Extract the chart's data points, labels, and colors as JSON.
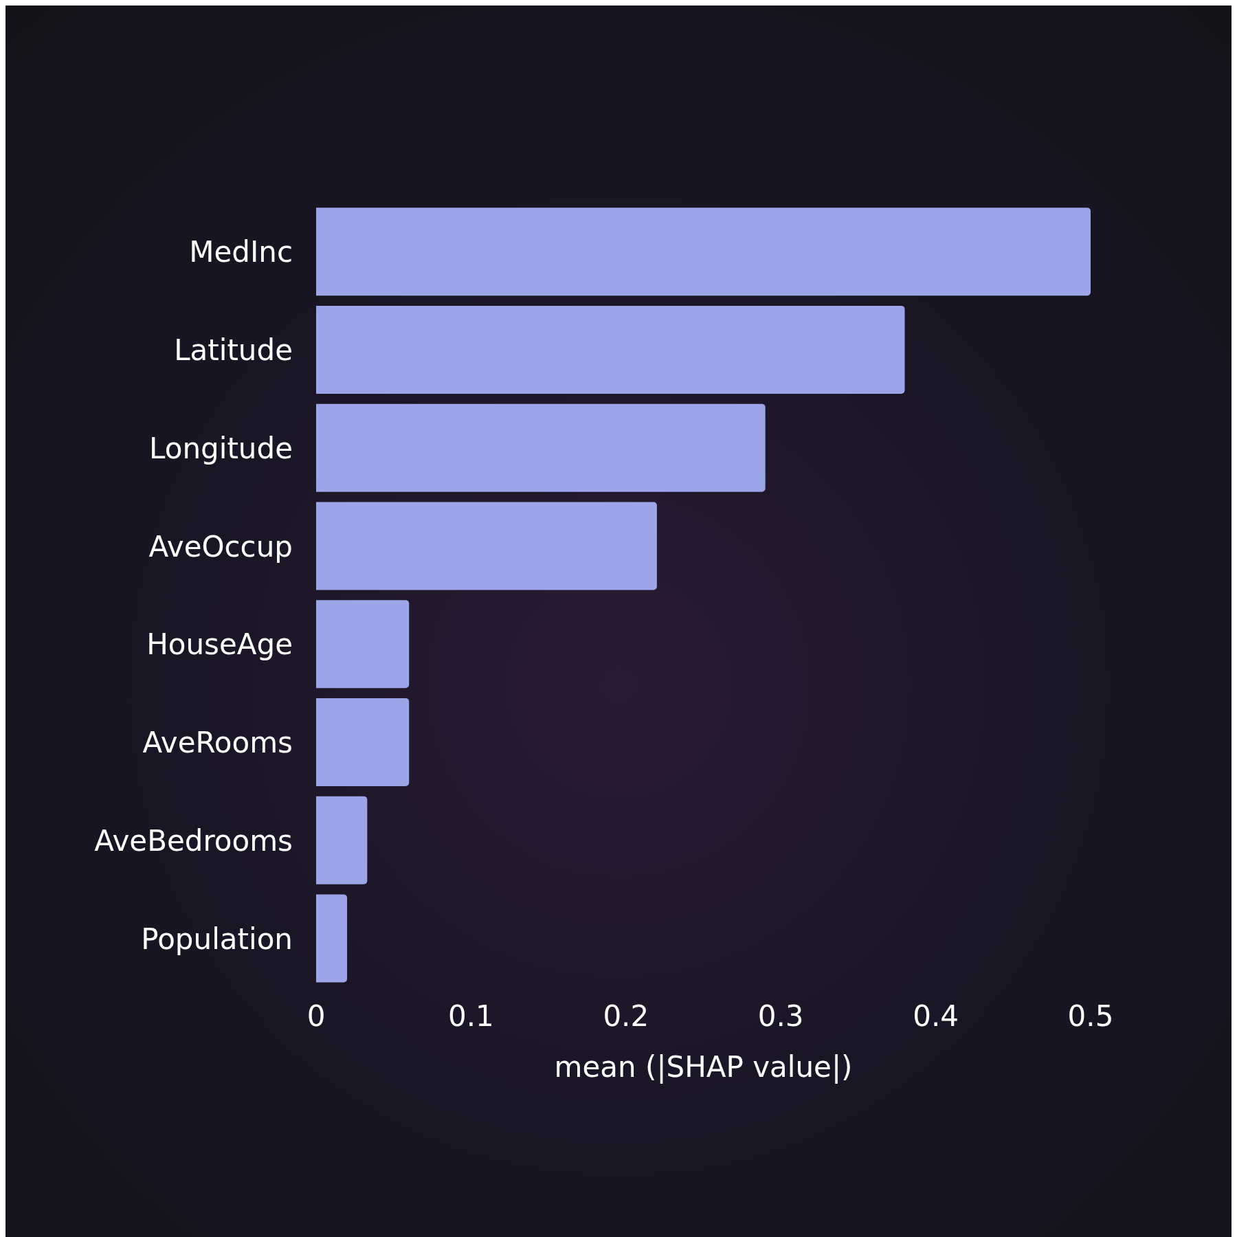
{
  "chart_data": {
    "type": "bar",
    "orientation": "horizontal",
    "xlabel": "mean (|SHAP value|)",
    "categories": [
      "MedInc",
      "Latitude",
      "Longitude",
      "AveOccup",
      "HouseAge",
      "AveRooms",
      "AveBedrooms",
      "Population"
    ],
    "values": [
      0.5,
      0.38,
      0.29,
      0.22,
      0.06,
      0.06,
      0.033,
      0.02
    ],
    "color": "#9ba5e8",
    "xlim": [
      0,
      0.5
    ],
    "xticks": [
      0,
      0.1,
      0.2,
      0.3,
      0.4,
      0.5
    ]
  }
}
